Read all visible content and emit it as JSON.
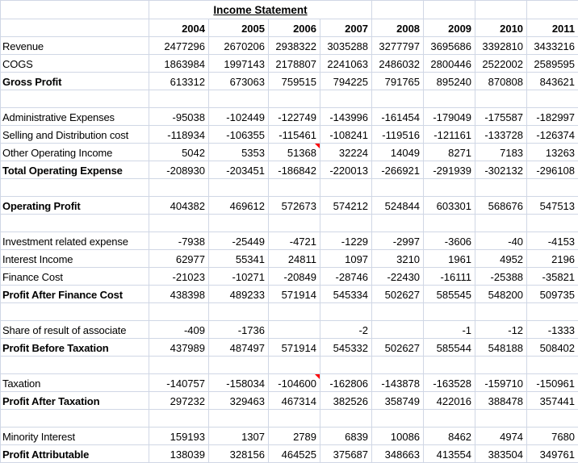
{
  "title": "Income Statement",
  "years": [
    "2004",
    "2005",
    "2006",
    "2007",
    "2008",
    "2009",
    "2010",
    "2011"
  ],
  "colors": {
    "gridline": "#d0d7e5",
    "total_row_border": "#1a1a1a",
    "comment_indicator": "#ff0000",
    "text": "#000000",
    "background": "#ffffff"
  },
  "rows": [
    {
      "label": "Revenue",
      "bold": false,
      "top_border": false,
      "values": [
        "2477296",
        "2670206",
        "2938322",
        "3035288",
        "3277797",
        "3695686",
        "3392810",
        "3433216"
      ]
    },
    {
      "label": "COGS",
      "bold": false,
      "top_border": false,
      "values": [
        "1863984",
        "1997143",
        "2178807",
        "2241063",
        "2486032",
        "2800446",
        "2522002",
        "2589595"
      ]
    },
    {
      "label": "Gross Profit",
      "bold": true,
      "top_border": true,
      "values": [
        "613312",
        "673063",
        "759515",
        "794225",
        "791765",
        "895240",
        "870808",
        "843621"
      ]
    },
    {
      "label": "",
      "bold": false,
      "top_border": false,
      "values": [
        "",
        "",
        "",
        "",
        "",
        "",
        "",
        ""
      ]
    },
    {
      "label": "Administrative Expenses",
      "bold": false,
      "top_border": false,
      "values": [
        "-95038",
        "-102449",
        "-122749",
        "-143996",
        "-161454",
        "-179049",
        "-175587",
        "-182997"
      ]
    },
    {
      "label": "Selling and Distribution cost",
      "bold": false,
      "top_border": false,
      "values": [
        "-118934",
        "-106355",
        "-115461",
        "-108241",
        "-119516",
        "-121161",
        "-133728",
        "-126374"
      ]
    },
    {
      "label": "Other Operating Income",
      "bold": false,
      "top_border": false,
      "values": [
        "5042",
        "5353",
        "51368",
        "32224",
        "14049",
        "8271",
        "7183",
        "13263"
      ],
      "comments": [
        2
      ]
    },
    {
      "label": "Total Operating Expense",
      "bold": true,
      "top_border": true,
      "values": [
        "-208930",
        "-203451",
        "-186842",
        "-220013",
        "-266921",
        "-291939",
        "-302132",
        "-296108"
      ]
    },
    {
      "label": "",
      "bold": false,
      "top_border": false,
      "values": [
        "",
        "",
        "",
        "",
        "",
        "",
        "",
        ""
      ]
    },
    {
      "label": "Operating Profit",
      "bold": true,
      "top_border": true,
      "values": [
        "404382",
        "469612",
        "572673",
        "574212",
        "524844",
        "603301",
        "568676",
        "547513"
      ]
    },
    {
      "label": "",
      "bold": false,
      "top_border": false,
      "values": [
        "",
        "",
        "",
        "",
        "",
        "",
        "",
        ""
      ]
    },
    {
      "label": "Investment related expense",
      "bold": false,
      "top_border": false,
      "values": [
        "-7938",
        "-25449",
        "-4721",
        "-1229",
        "-2997",
        "-3606",
        "-40",
        "-4153"
      ]
    },
    {
      "label": "Interest Income",
      "bold": false,
      "top_border": false,
      "values": [
        "62977",
        "55341",
        "24811",
        "1097",
        "3210",
        "1961",
        "4952",
        "2196"
      ]
    },
    {
      "label": "Finance Cost",
      "bold": false,
      "top_border": false,
      "values": [
        "-21023",
        "-10271",
        "-20849",
        "-28746",
        "-22430",
        "-16111",
        "-25388",
        "-35821"
      ]
    },
    {
      "label": "Profit After Finance Cost",
      "bold": true,
      "top_border": true,
      "values": [
        "438398",
        "489233",
        "571914",
        "545334",
        "502627",
        "585545",
        "548200",
        "509735"
      ]
    },
    {
      "label": "",
      "bold": false,
      "top_border": false,
      "values": [
        "",
        "",
        "",
        "",
        "",
        "",
        "",
        ""
      ]
    },
    {
      "label": "Share of result of associate",
      "bold": false,
      "top_border": false,
      "values": [
        "-409",
        "-1736",
        "",
        "-2",
        "",
        "-1",
        "-12",
        "-1333"
      ]
    },
    {
      "label": "Profit Before Taxation",
      "bold": true,
      "top_border": true,
      "values": [
        "437989",
        "487497",
        "571914",
        "545332",
        "502627",
        "585544",
        "548188",
        "508402"
      ]
    },
    {
      "label": "",
      "bold": false,
      "top_border": false,
      "values": [
        "",
        "",
        "",
        "",
        "",
        "",
        "",
        ""
      ]
    },
    {
      "label": "Taxation",
      "bold": false,
      "top_border": false,
      "values": [
        "-140757",
        "-158034",
        "-104600",
        "-162806",
        "-143878",
        "-163528",
        "-159710",
        "-150961"
      ],
      "comments": [
        2
      ]
    },
    {
      "label": "Profit After Taxation",
      "bold": true,
      "top_border": true,
      "values": [
        "297232",
        "329463",
        "467314",
        "382526",
        "358749",
        "422016",
        "388478",
        "357441"
      ]
    },
    {
      "label": "",
      "bold": false,
      "top_border": false,
      "values": [
        "",
        "",
        "",
        "",
        "",
        "",
        "",
        ""
      ]
    },
    {
      "label": "Minority Interest",
      "bold": false,
      "top_border": false,
      "values": [
        "159193",
        "1307",
        "2789",
        "6839",
        "10086",
        "8462",
        "4974",
        "7680"
      ]
    },
    {
      "label": "Profit Attributable",
      "bold": true,
      "top_border": true,
      "values": [
        "138039",
        "328156",
        "464525",
        "375687",
        "348663",
        "413554",
        "383504",
        "349761"
      ]
    }
  ]
}
